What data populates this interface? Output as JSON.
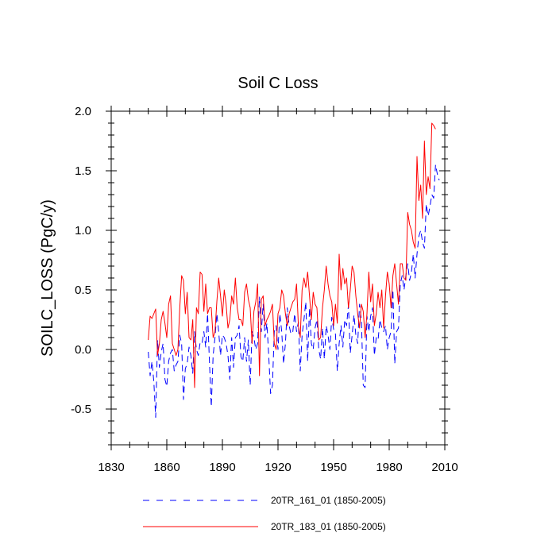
{
  "chart_data": {
    "type": "line",
    "title": "Soil C Loss",
    "xlabel": "",
    "ylabel": "SOILC_LOSS  (PgC/y)",
    "xlim": [
      1830,
      2010
    ],
    "ylim": [
      -0.8,
      2.0
    ],
    "xticks": [
      1830,
      1860,
      1890,
      1920,
      1950,
      1980,
      2010
    ],
    "xtick_labels": [
      "1830",
      "1860",
      "1890",
      "1920",
      "1950",
      "1980",
      "2010"
    ],
    "yticks": [
      -0.5,
      0.0,
      0.5,
      1.0,
      1.5,
      2.0
    ],
    "ytick_labels": [
      "-0.5",
      "0.0",
      "0.5",
      "1.0",
      "1.5",
      "2.0"
    ],
    "legend_position": "bottom",
    "series": [
      {
        "name": "20TR_161_01 (1850-2005)",
        "color": "#0000ff",
        "style": "dashed",
        "x_start": 1850,
        "x_step": 1,
        "values": [
          -0.02,
          -0.22,
          -0.1,
          -0.27,
          -0.57,
          0.08,
          -0.15,
          -0.02,
          0.05,
          -0.25,
          -0.31,
          -0.1,
          -0.03,
          0.0,
          -0.18,
          -0.13,
          -0.1,
          0.12,
          0.05,
          -0.42,
          -0.16,
          -0.12,
          0.02,
          -0.05,
          -0.2,
          0.15,
          0.0,
          -0.05,
          0.06,
          0.05,
          0.15,
          0.02,
          0.3,
          -0.1,
          -0.48,
          -0.05,
          0.1,
          0.3,
          0.15,
          -0.05,
          0.12,
          0.1,
          0.05,
          -0.05,
          -0.25,
          0.1,
          -0.15,
          0.1,
          0.12,
          0.2,
          -0.06,
          -0.1,
          0.1,
          -0.1,
          0.08,
          -0.3,
          0.15,
          0.1,
          0.0,
          0.05,
          0.44,
          0.15,
          0.38,
          0.1,
          0.22,
          -0.05,
          -0.37,
          -0.3,
          0.15,
          0.2,
          0.0,
          0.3,
          0.15,
          -0.12,
          0.05,
          0.35,
          0.2,
          0.13,
          0.15,
          0.3,
          0.15,
          0.23,
          -0.18,
          0.12,
          0.25,
          0.4,
          -0.1,
          0.35,
          0.05,
          0.0,
          0.18,
          0.25,
          0.0,
          -0.08,
          0.18,
          -0.08,
          0.2,
          0.12,
          0.0,
          0.27,
          0.17,
          0.13,
          -0.18,
          0.05,
          0.2,
          0.02,
          0.25,
          0.2,
          0.37,
          -0.03,
          0.12,
          0.29,
          0.12,
          0.05,
          0.38,
          0.25,
          -0.3,
          -0.32,
          0.28,
          0.15,
          0.28,
          0.35,
          -0.05,
          0.1,
          0.08,
          0.25,
          0.18,
          0.15,
          0.2,
          0.0,
          0.1,
          0.15,
          0.5,
          -0.12,
          0.15,
          0.18,
          0.55,
          0.62,
          0.5,
          0.62,
          0.72,
          0.58,
          0.65,
          0.8,
          0.6,
          0.8,
          0.95,
          1.0,
          0.9,
          0.85,
          1.22,
          1.12,
          1.2,
          1.3,
          1.27,
          1.55,
          1.47,
          1.42
        ]
      },
      {
        "name": "20TR_183_01 (1850-2005)",
        "color": "#ff0000",
        "style": "solid",
        "x_start": 1850,
        "x_step": 1,
        "values": [
          0.08,
          0.28,
          0.26,
          0.3,
          0.34,
          -0.05,
          0.05,
          0.25,
          0.32,
          0.22,
          0.1,
          0.38,
          0.45,
          0.05,
          0.0,
          -0.05,
          0.0,
          0.35,
          0.62,
          0.58,
          0.3,
          0.48,
          0.1,
          0.08,
          0.25,
          -0.32,
          0.35,
          0.3,
          0.65,
          0.63,
          0.32,
          0.55,
          0.3,
          0.35,
          0.35,
          0.1,
          0.15,
          0.4,
          0.6,
          0.45,
          0.28,
          0.5,
          0.38,
          0.18,
          0.25,
          0.45,
          0.38,
          0.6,
          0.35,
          0.25,
          0.25,
          0.2,
          0.48,
          0.55,
          0.42,
          0.35,
          0.05,
          0.32,
          0.4,
          0.55,
          -0.22,
          0.42,
          0.45,
          0.2,
          0.25,
          0.28,
          0.32,
          0.38,
          0.05,
          0.0,
          0.3,
          0.35,
          0.5,
          0.45,
          0.3,
          0.2,
          0.3,
          0.35,
          0.4,
          0.42,
          0.55,
          0.2,
          0.1,
          0.5,
          0.6,
          0.52,
          0.65,
          0.45,
          0.25,
          0.48,
          0.38,
          0.35,
          0.08,
          0.1,
          0.35,
          0.5,
          0.7,
          0.55,
          0.45,
          0.4,
          0.2,
          0.38,
          0.22,
          0.8,
          0.5,
          0.68,
          0.55,
          0.6,
          0.35,
          0.5,
          0.7,
          0.65,
          0.45,
          0.3,
          0.18,
          0.38,
          0.32,
          0.1,
          0.3,
          0.65,
          0.4,
          0.55,
          0.2,
          0.3,
          0.48,
          0.35,
          0.5,
          0.18,
          0.45,
          0.65,
          0.55,
          0.35,
          0.62,
          0.72,
          0.55,
          0.38,
          0.72,
          0.72,
          0.6,
          0.58,
          1.15,
          1.05,
          1.0,
          0.9,
          0.85,
          1.62,
          1.25,
          1.38,
          1.1,
          1.75,
          1.3,
          1.45,
          1.35,
          1.9,
          1.88,
          1.85
        ]
      }
    ]
  }
}
